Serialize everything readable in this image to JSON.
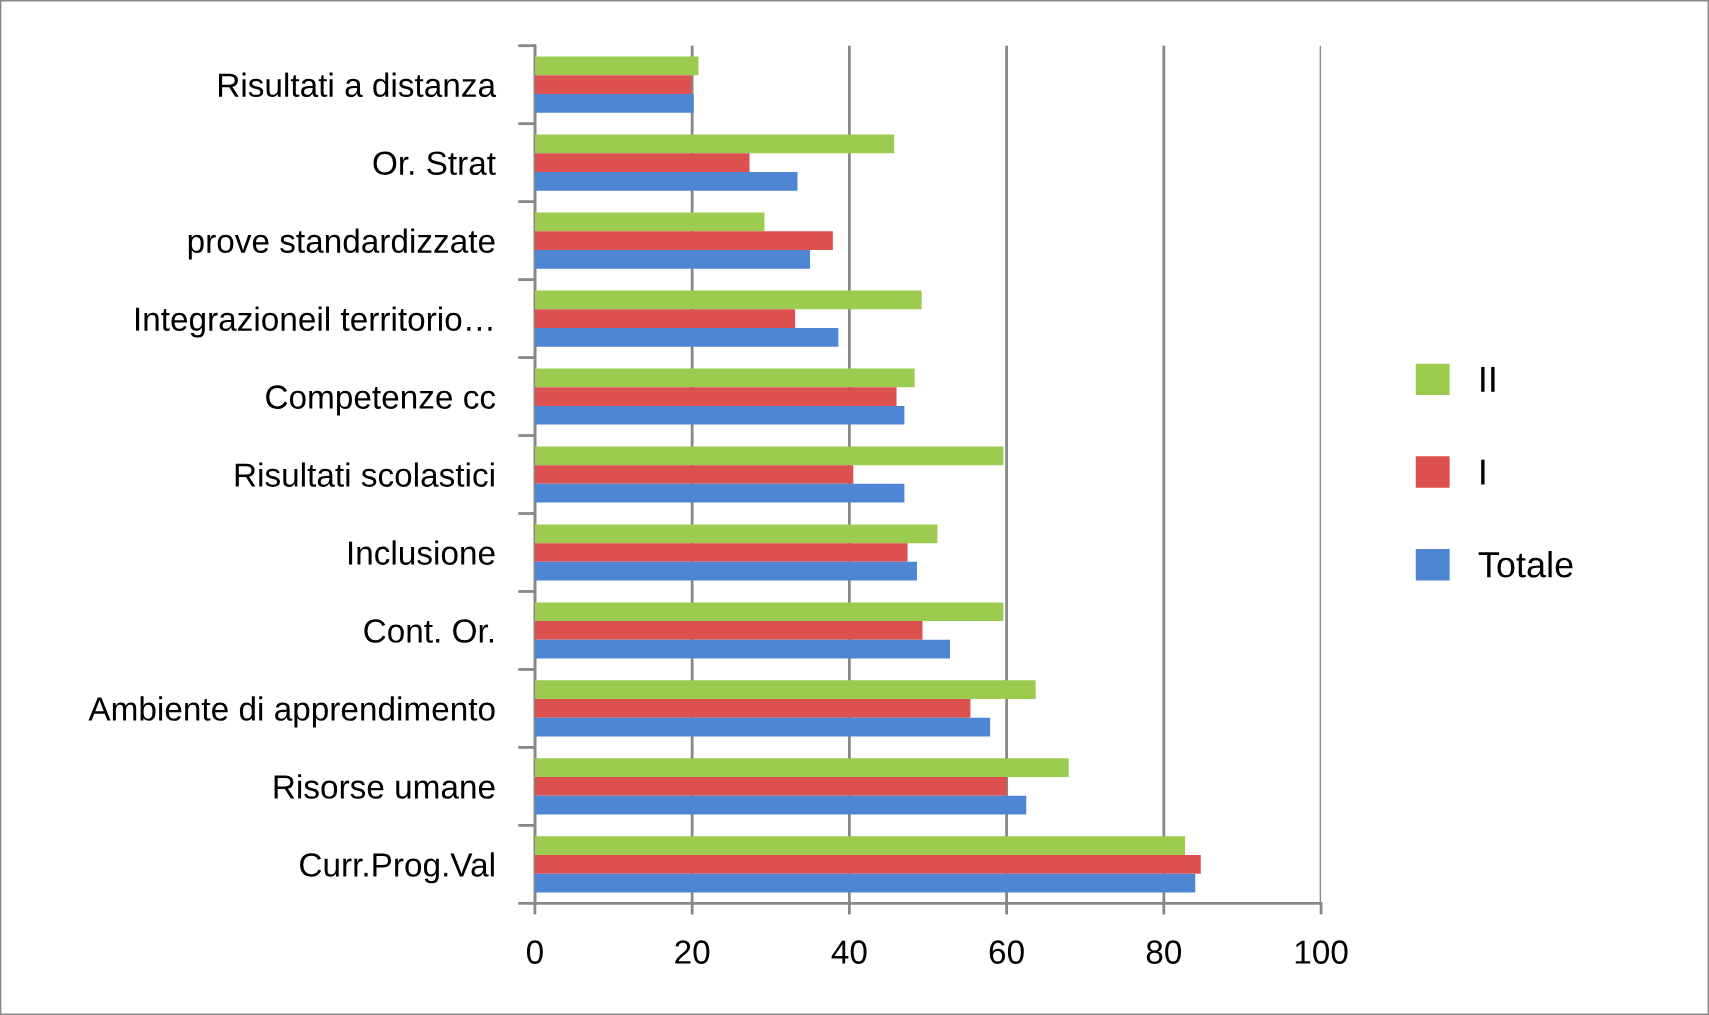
{
  "chart_data": {
    "type": "bar",
    "orientation": "horizontal",
    "categories": [
      "Risultati a distanza",
      "Or. Strat",
      "prove standardizzate",
      "Integrazioneil territorio…",
      "Competenze cc",
      "Risultati scolastici",
      "Inclusione",
      "Cont. Or.",
      "Ambiente di apprendimento",
      "Risorse umane",
      "Curr.Prog.Val"
    ],
    "series": [
      {
        "name": "II",
        "color": "#9bcc50",
        "values": [
          20.8,
          45.7,
          29.2,
          49.2,
          48.3,
          59.6,
          51.2,
          59.6,
          63.7,
          67.9,
          82.7
        ]
      },
      {
        "name": "I",
        "color": "#dc5050",
        "values": [
          19.9,
          27.3,
          37.9,
          33.1,
          46.0,
          40.5,
          47.4,
          49.3,
          55.4,
          60.0,
          84.7
        ]
      },
      {
        "name": "Totale",
        "color": "#4f86d4",
        "values": [
          20.2,
          33.4,
          35.0,
          38.6,
          47.0,
          47.0,
          48.6,
          52.8,
          57.9,
          62.5,
          84.0
        ]
      }
    ],
    "xlim": [
      0,
      100
    ],
    "xticks": [
      0,
      20,
      40,
      60,
      80,
      100
    ],
    "grid": "x",
    "legend": "right"
  }
}
